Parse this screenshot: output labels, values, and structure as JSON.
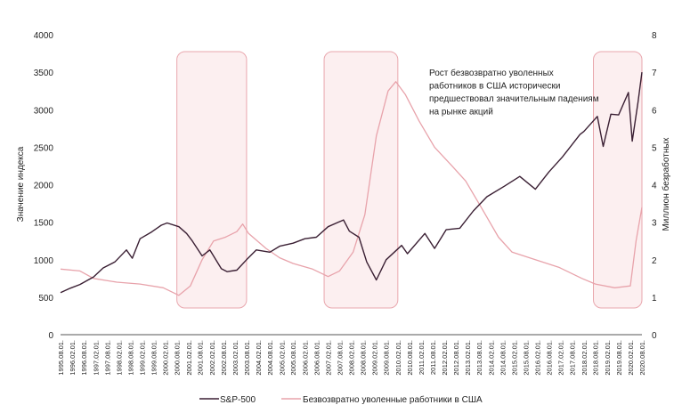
{
  "chart_data": {
    "type": "line",
    "annotation": "Рост безвозвратно уволенных работников в США исторически предшествовал значительным падениям на рынке акций",
    "ylabel_left": "Значение индекса",
    "ylabel_right": "Миллион безработных",
    "ylim_left": [
      0,
      4000
    ],
    "ylim_right": [
      0,
      8
    ],
    "yticks_left": [
      "0",
      "500",
      "1000",
      "1500",
      "2000",
      "2500",
      "3000",
      "3500",
      "4000"
    ],
    "yticks_right": [
      "0",
      "1",
      "2",
      "3",
      "4",
      "5",
      "6",
      "7",
      "8"
    ],
    "x_ticks": [
      "1995.08.01.",
      "1996.02.01.",
      "1996.08.01.",
      "1997.02.01.",
      "1997.08.01.",
      "1998.02.01.",
      "1998.08.01.",
      "1999.02.01.",
      "1999.08.01.",
      "2000.02.01.",
      "2000.08.01.",
      "2001.02.01.",
      "2001.08.01.",
      "2002.02.01.",
      "2002.08.01.",
      "2003.02.01.",
      "2003.08.01.",
      "2004.02.01.",
      "2004.08.01.",
      "2005.02.01.",
      "2005.08.01.",
      "2006.02.01.",
      "2006.08.01.",
      "2007.02.01.",
      "2007.08.01.",
      "2008.02.01.",
      "2008.08.01.",
      "2009.02.01.",
      "2009.08.01.",
      "2010.02.01.",
      "2010.08.01.",
      "2011.02.01.",
      "2011.08.01.",
      "2012.02.01.",
      "2012.08.01.",
      "2013.02.01.",
      "2013.08.01.",
      "2014.02.01.",
      "2014.08.01.",
      "2015.02.01.",
      "2015.08.01.",
      "2016.02.01.",
      "2016.08.01.",
      "2017.02.01.",
      "2017.08.01.",
      "2018.02.01.",
      "2018.08.01.",
      "2019.02.01.",
      "2019.08.01.",
      "2020.02.01.",
      "2020.08.01."
    ],
    "grid": false,
    "legend_position": "bottom-center",
    "highlight_periods": [
      {
        "start": "2000-08-01",
        "end": "2003-08-01"
      },
      {
        "start": "2006-12-01",
        "end": "2010-02-01"
      },
      {
        "start": "2018-07-01",
        "end": "2020-08-01"
      }
    ],
    "series": [
      {
        "name": "S&P-500",
        "axis": "left",
        "color": "#3a1f33",
        "points": [
          [
            "1995-08",
            560
          ],
          [
            "1996-01",
            620
          ],
          [
            "1996-06",
            670
          ],
          [
            "1997-01",
            770
          ],
          [
            "1997-06",
            890
          ],
          [
            "1997-12",
            970
          ],
          [
            "1998-06",
            1130
          ],
          [
            "1998-09",
            1020
          ],
          [
            "1999-01",
            1280
          ],
          [
            "1999-07",
            1370
          ],
          [
            "1999-12",
            1460
          ],
          [
            "2000-03",
            1490
          ],
          [
            "2000-09",
            1440
          ],
          [
            "2001-01",
            1350
          ],
          [
            "2001-04",
            1250
          ],
          [
            "2001-09",
            1050
          ],
          [
            "2002-01",
            1130
          ],
          [
            "2002-07",
            880
          ],
          [
            "2002-10",
            840
          ],
          [
            "2003-03",
            860
          ],
          [
            "2003-08",
            1000
          ],
          [
            "2004-01",
            1130
          ],
          [
            "2004-08",
            1100
          ],
          [
            "2005-01",
            1180
          ],
          [
            "2005-08",
            1220
          ],
          [
            "2006-02",
            1280
          ],
          [
            "2006-08",
            1300
          ],
          [
            "2007-02",
            1440
          ],
          [
            "2007-10",
            1530
          ],
          [
            "2008-01",
            1380
          ],
          [
            "2008-06",
            1300
          ],
          [
            "2008-10",
            970
          ],
          [
            "2009-03",
            730
          ],
          [
            "2009-08",
            1000
          ],
          [
            "2010-04",
            1190
          ],
          [
            "2010-07",
            1080
          ],
          [
            "2011-04",
            1350
          ],
          [
            "2011-09",
            1150
          ],
          [
            "2012-03",
            1400
          ],
          [
            "2012-10",
            1420
          ],
          [
            "2013-05",
            1650
          ],
          [
            "2013-12",
            1840
          ],
          [
            "2014-09",
            1980
          ],
          [
            "2015-05",
            2110
          ],
          [
            "2016-01",
            1940
          ],
          [
            "2016-08",
            2170
          ],
          [
            "2017-03",
            2370
          ],
          [
            "2017-12",
            2670
          ],
          [
            "2018-02",
            2710
          ],
          [
            "2018-09",
            2910
          ],
          [
            "2018-12",
            2510
          ],
          [
            "2019-04",
            2940
          ],
          [
            "2019-08",
            2930
          ],
          [
            "2020-01",
            3230
          ],
          [
            "2020-03",
            2580
          ],
          [
            "2020-06",
            3100
          ],
          [
            "2020-08",
            3500
          ]
        ]
      },
      {
        "name": "Безвозвратно уволенные работники в США",
        "axis": "right",
        "color": "#e8a3ab",
        "points": [
          [
            "1995-08",
            1.75
          ],
          [
            "1996-06",
            1.7
          ],
          [
            "1997-01",
            1.5
          ],
          [
            "1998-01",
            1.4
          ],
          [
            "1999-01",
            1.35
          ],
          [
            "2000-01",
            1.25
          ],
          [
            "2000-09",
            1.05
          ],
          [
            "2001-03",
            1.3
          ],
          [
            "2001-09",
            2.0
          ],
          [
            "2002-03",
            2.5
          ],
          [
            "2002-09",
            2.6
          ],
          [
            "2003-03",
            2.75
          ],
          [
            "2003-06",
            2.95
          ],
          [
            "2003-09",
            2.7
          ],
          [
            "2004-06",
            2.3
          ],
          [
            "2005-01",
            2.05
          ],
          [
            "2005-08",
            1.9
          ],
          [
            "2006-06",
            1.75
          ],
          [
            "2007-02",
            1.55
          ],
          [
            "2007-08",
            1.7
          ],
          [
            "2008-03",
            2.2
          ],
          [
            "2008-09",
            3.2
          ],
          [
            "2009-03",
            5.3
          ],
          [
            "2009-09",
            6.5
          ],
          [
            "2010-01",
            6.75
          ],
          [
            "2010-06",
            6.4
          ],
          [
            "2011-01",
            5.7
          ],
          [
            "2011-09",
            5.0
          ],
          [
            "2012-06",
            4.5
          ],
          [
            "2013-01",
            4.1
          ],
          [
            "2013-09",
            3.4
          ],
          [
            "2014-06",
            2.6
          ],
          [
            "2015-01",
            2.2
          ],
          [
            "2016-01",
            2.0
          ],
          [
            "2017-01",
            1.8
          ],
          [
            "2018-01",
            1.5
          ],
          [
            "2018-08",
            1.35
          ],
          [
            "2019-06",
            1.25
          ],
          [
            "2020-02",
            1.3
          ],
          [
            "2020-05",
            2.5
          ],
          [
            "2020-08",
            3.4
          ]
        ]
      }
    ]
  }
}
